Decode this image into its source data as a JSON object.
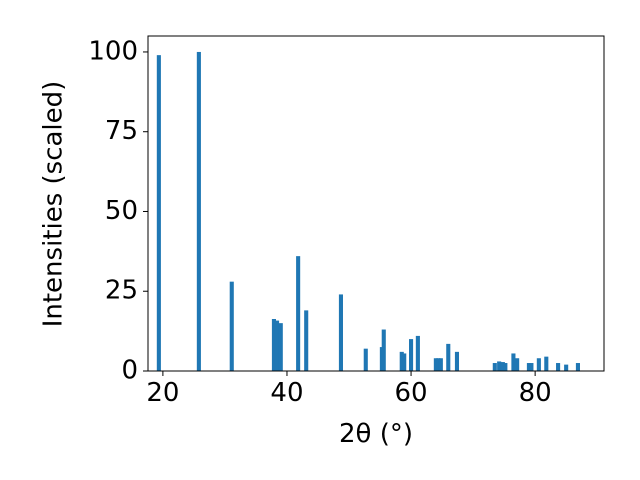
{
  "chart_data": {
    "type": "bar",
    "xlabel": "2θ (°)",
    "ylabel": "Intensities (scaled)",
    "x": [
      19.35,
      25.8,
      31.1,
      37.9,
      38.4,
      39.0,
      41.8,
      43.1,
      48.7,
      52.7,
      55.3,
      55.6,
      58.5,
      58.9,
      60.0,
      61.1,
      64.0,
      64.4,
      64.8,
      66.0,
      67.4,
      73.5,
      74.2,
      74.8,
      75.2,
      76.5,
      77.1,
      79.0,
      79.4,
      80.6,
      81.8,
      83.7,
      85.0,
      86.9
    ],
    "values": [
      99,
      100,
      28,
      16.3,
      15.8,
      15,
      36,
      19,
      24,
      7,
      7.5,
      13,
      6,
      5.5,
      10,
      11,
      4,
      4,
      4,
      8.5,
      6,
      2.5,
      3,
      2.8,
      2.5,
      5.5,
      4,
      2.5,
      2.5,
      4,
      4.5,
      2.5,
      2,
      2.5
    ],
    "color": "#1f77b4",
    "xlim": [
      17.6,
      91.1
    ],
    "xticks": [
      20,
      40,
      60,
      80
    ],
    "ylim": [
      0,
      105
    ],
    "yticks": [
      0,
      25,
      50,
      75,
      100
    ]
  }
}
